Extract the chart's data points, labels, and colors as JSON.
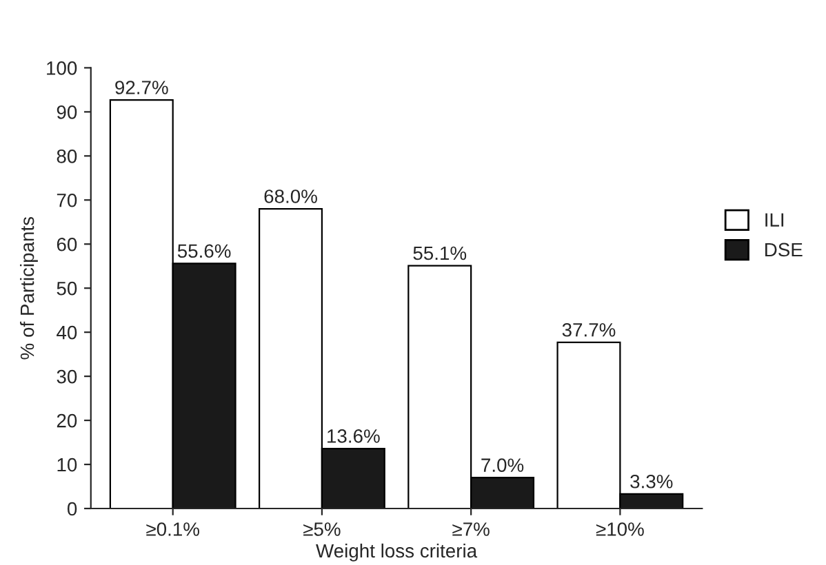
{
  "chart_data": {
    "type": "bar",
    "xlabel": "Weight loss criteria",
    "ylabel": "% of Participants",
    "categories": [
      "≥0.1%",
      "≥5%",
      "≥7%",
      "≥10%"
    ],
    "series": [
      {
        "name": "ILI",
        "color": "#ffffff",
        "values": [
          92.7,
          68.0,
          55.1,
          37.7
        ],
        "value_labels": [
          "92.7%",
          "68.0%",
          "55.1%",
          "37.7%"
        ]
      },
      {
        "name": "DSE",
        "color": "#1a1a1a",
        "values": [
          55.6,
          13.6,
          7.0,
          3.3
        ],
        "value_labels": [
          "55.6%",
          "13.6%",
          "7.0%",
          "3.3%"
        ]
      }
    ],
    "ylim": [
      0,
      100
    ],
    "yticks": [
      0,
      10,
      20,
      30,
      40,
      50,
      60,
      70,
      80,
      90,
      100
    ],
    "grid": false,
    "legend": "right"
  }
}
